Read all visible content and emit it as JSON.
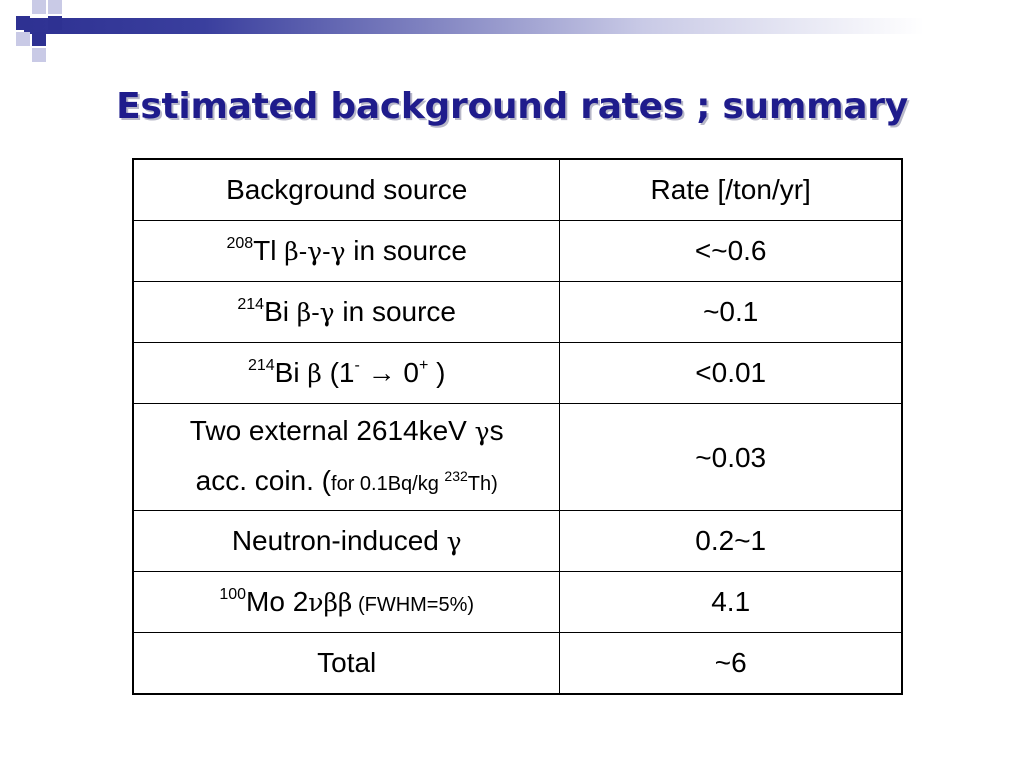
{
  "slide": {
    "title": "Estimated background rates ; summary"
  },
  "table": {
    "headers": [
      "Background source",
      "Rate [/ton/yr]"
    ],
    "rows": [
      {
        "source": {
          "sup": "208",
          "elem": "Tl",
          "decay": "β-γ-γ",
          "suffix": " in source"
        },
        "rate": "<~0.6"
      },
      {
        "source": {
          "sup": "214",
          "elem": "Bi",
          "decay": "β-γ",
          "suffix": " in source"
        },
        "rate": "~0.1"
      },
      {
        "source": {
          "sup": "214",
          "elem": "Bi",
          "decay": "β",
          "t1": " (1",
          "t1sup": "-",
          "arrow": " → 0",
          "t2sup": "+",
          "close": " )"
        },
        "rate": "<0.01"
      },
      {
        "source": {
          "line1": "Two external 2614keV ",
          "gamma": "γ",
          "line1_end": "s",
          "line2": "acc. coin. (",
          "note_pre": "for 0.1Bq/kg ",
          "note_sup": "232",
          "note_post": "Th)"
        },
        "rate": "~0.03"
      },
      {
        "source": {
          "text": "Neutron-induced ",
          "gamma": "γ"
        },
        "rate": "0.2~1"
      },
      {
        "source": {
          "sup": "100",
          "elem": "Mo 2",
          "decay": "νββ",
          "note": " (FWHM=5%)"
        },
        "rate": "4.1"
      },
      {
        "source": {
          "text": "Total"
        },
        "rate": "~6"
      }
    ]
  }
}
